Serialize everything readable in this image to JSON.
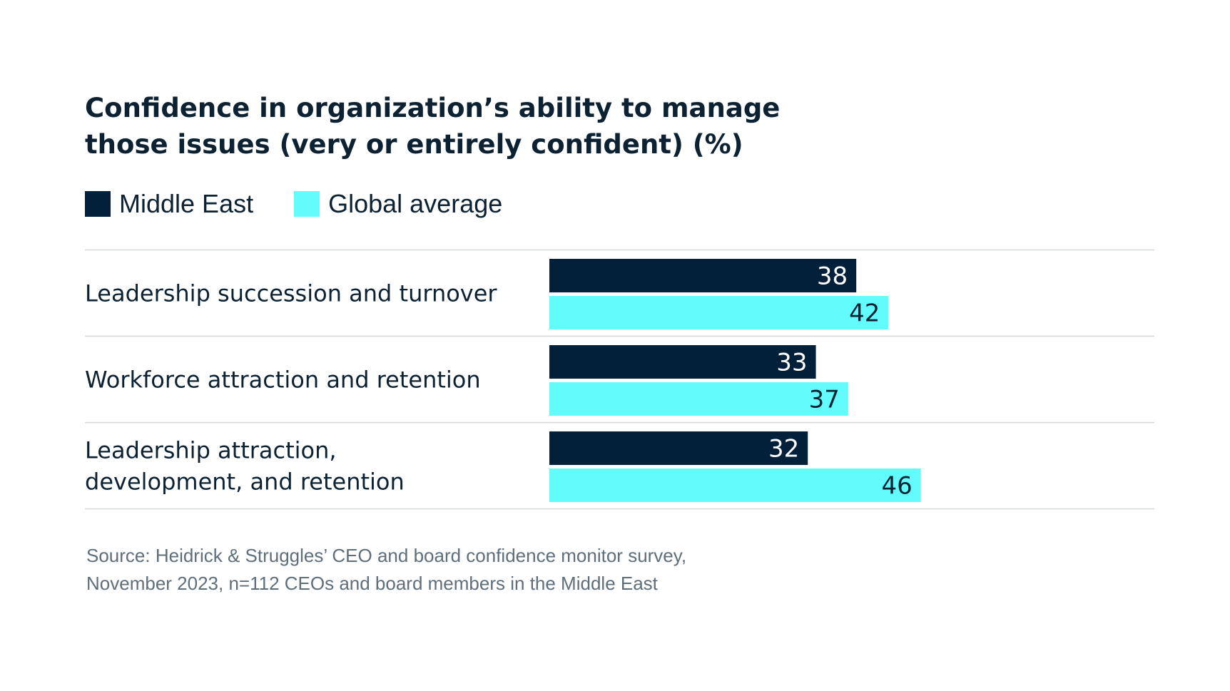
{
  "title_lines": [
    "Confidence in organization’s ability to manage",
    "those issues (very or entirely confident) (%)"
  ],
  "colors": {
    "middle_east": "#03203a",
    "global_average": "#63fcfc",
    "gridline": "#d6d9dc",
    "label_text": "#0c2233",
    "source_text": "#5f6e7b"
  },
  "legend": [
    {
      "label": "Middle East",
      "color": "#03203a"
    },
    {
      "label": "Global average",
      "color": "#63fcfc"
    }
  ],
  "chart_data": {
    "type": "bar",
    "orientation": "horizontal",
    "title": "Confidence in organization’s ability to manage those issues (very or entirely confident) (%)",
    "categories": [
      [
        "Leadership succession and turnover"
      ],
      [
        "Workforce attraction and retention"
      ],
      [
        "Leadership attraction,",
        "development, and retention"
      ]
    ],
    "series": [
      {
        "name": "Middle East",
        "values": [
          38,
          33,
          32
        ],
        "color": "#03203a",
        "label_color": "#ffffff"
      },
      {
        "name": "Global average",
        "values": [
          42,
          37,
          46
        ],
        "color": "#63fcfc",
        "label_color": "#0c2233"
      }
    ],
    "xlim": [
      0,
      100
    ],
    "grid": false,
    "legend_position": "top-left",
    "data_labels": "inside-end"
  },
  "source_lines": [
    "Source: Heidrick & Struggles’ CEO and board confidence monitor survey,",
    "November 2023, n=112 CEOs and board members in the Middle East"
  ]
}
